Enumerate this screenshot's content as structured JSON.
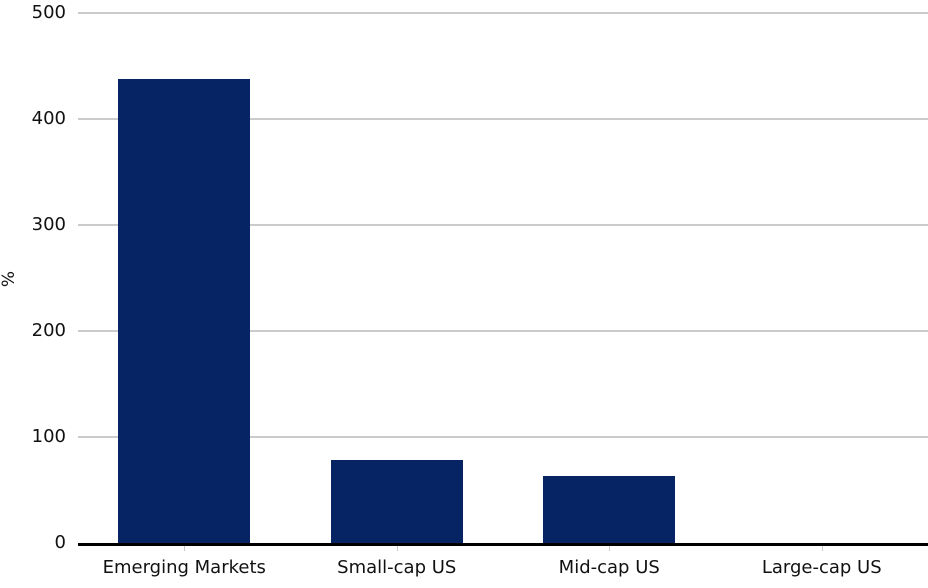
{
  "chart_data": {
    "type": "bar",
    "title": "",
    "xlabel": "",
    "ylabel": "%",
    "categories": [
      "Emerging Markets",
      "Small-cap US",
      "Mid-cap US",
      "Large-cap US"
    ],
    "values": [
      438,
      78,
      63,
      0
    ],
    "ylim": [
      0,
      500
    ],
    "yticks": [
      0,
      100,
      200,
      300,
      400,
      500
    ],
    "grid": "horizontal",
    "legend_position": "none",
    "colors": {
      "bar": "#062363",
      "gridline": "#cbcbcb",
      "axis": "#000000",
      "tick_mark": "#c9c9c9",
      "text": "#111111",
      "background": "#ffffff"
    }
  }
}
